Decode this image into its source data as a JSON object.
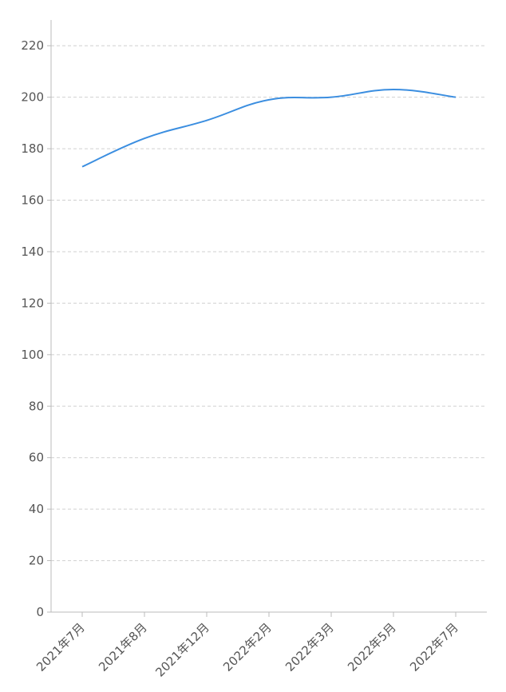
{
  "chart_data": {
    "type": "line",
    "title": "",
    "xlabel": "",
    "ylabel": "",
    "categories": [
      "2021年7月",
      "2021年8月",
      "2021年12月",
      "2022年2月",
      "2022年3月",
      "2022年5月",
      "2022年7月"
    ],
    "series": [
      {
        "values": [
          173,
          184,
          191,
          199,
          200,
          203,
          200
        ],
        "color": "#3b8ee0"
      }
    ],
    "ylim": [
      0,
      230
    ],
    "yticks": [
      0,
      20,
      40,
      60,
      80,
      100,
      120,
      140,
      160,
      180,
      200,
      220
    ],
    "grid": true,
    "legend": "none",
    "smooth": true
  }
}
